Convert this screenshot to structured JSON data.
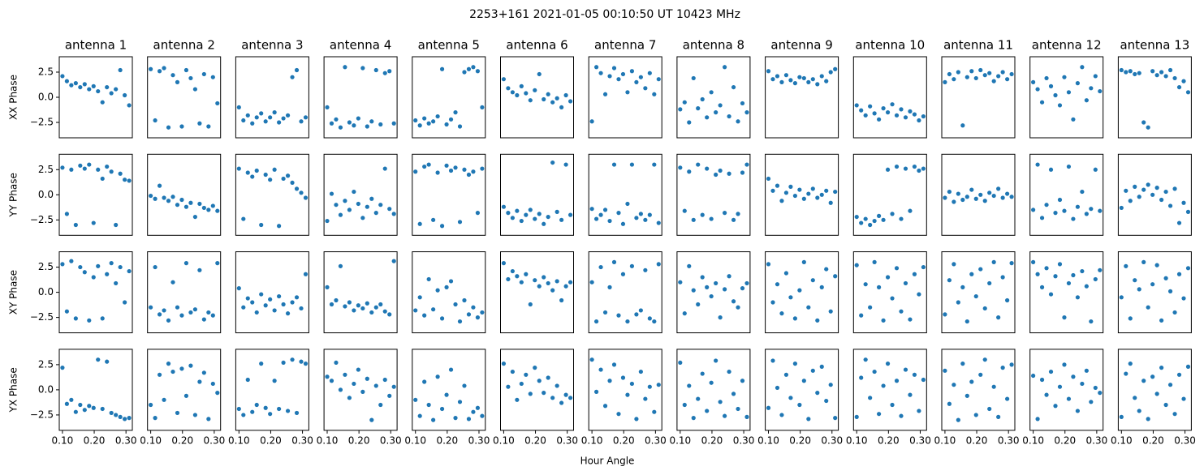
{
  "chart_data": {
    "type": "scatter",
    "title": "2253+161  2021-01-05 00:10:50 UT  10423 MHz",
    "xlabel": "Hour Angle",
    "color": "#1f77b4",
    "columns": [
      "antenna 1",
      "antenna 2",
      "antenna 3",
      "antenna 4",
      "antenna 5",
      "antenna 6",
      "antenna 7",
      "antenna 8",
      "antenna 9",
      "antenna 10",
      "antenna 11",
      "antenna 12",
      "antenna 13"
    ],
    "x": [
      0.1,
      0.114,
      0.128,
      0.142,
      0.156,
      0.17,
      0.184,
      0.198,
      0.212,
      0.226,
      0.24,
      0.254,
      0.268,
      0.282,
      0.296,
      0.31
    ],
    "xlim": [
      0.09,
      0.32
    ],
    "xticks": [
      {
        "value": 0.1,
        "label": "0.10"
      },
      {
        "value": 0.2,
        "label": "0.20"
      },
      {
        "value": 0.3,
        "label": "0.30"
      }
    ],
    "ylim": [
      -4.03,
      4.03
    ],
    "yticks": [
      {
        "value": -2.5,
        "label": "−2.5"
      },
      {
        "value": 0,
        "label": "0.0"
      },
      2.5
    ],
    "rows": [
      {
        "ylabel": "XX Phase",
        "panels": [
          [
            2.1,
            1.6,
            1.2,
            1.4,
            1.0,
            1.3,
            0.8,
            1.1,
            0.6,
            -0.5,
            1.0,
            0.4,
            0.8,
            2.7,
            0.2,
            -0.8
          ],
          [
            2.8,
            -2.3,
            2.6,
            2.9,
            -3.0,
            2.2,
            1.5,
            -2.9,
            2.7,
            1.9,
            0.8,
            -2.6,
            2.3,
            -2.9,
            2.0,
            -0.6
          ],
          [
            -1.0,
            -2.3,
            -1.8,
            -2.6,
            -2.0,
            -1.6,
            -2.4,
            -2.0,
            -1.5,
            -2.5,
            -2.1,
            -1.8,
            2.0,
            2.7,
            -2.4,
            -2.0
          ],
          [
            -1.0,
            -2.6,
            -2.2,
            -3.0,
            3.0,
            -2.5,
            -2.8,
            -2.1,
            2.9,
            -2.9,
            -2.4,
            2.7,
            -2.7,
            2.4,
            2.6,
            -2.6
          ],
          [
            -2.3,
            -2.8,
            -2.1,
            -2.6,
            -2.4,
            -1.9,
            2.8,
            -2.7,
            -2.2,
            -1.5,
            -2.9,
            2.5,
            2.8,
            3.0,
            2.6,
            -1.0
          ],
          [
            1.8,
            0.9,
            0.5,
            0.2,
            1.1,
            0.4,
            -0.3,
            0.7,
            2.3,
            -0.2,
            0.3,
            -0.5,
            -0.1,
            -1.0,
            0.2,
            -0.4
          ],
          [
            -2.4,
            3.0,
            2.4,
            0.3,
            2.1,
            2.9,
            1.8,
            2.3,
            0.5,
            2.6,
            1.5,
            2.0,
            0.9,
            2.4,
            0.3,
            1.8
          ],
          [
            -1.2,
            -0.5,
            -2.5,
            1.9,
            -1.1,
            -0.2,
            -2.0,
            0.5,
            -1.5,
            -0.8,
            3.0,
            -1.9,
            1.0,
            -2.4,
            -0.6,
            -1.5
          ],
          [
            2.6,
            1.8,
            2.1,
            1.5,
            2.2,
            1.7,
            1.4,
            2.0,
            1.9,
            1.5,
            1.8,
            1.3,
            2.1,
            1.6,
            2.5,
            2.8
          ],
          [
            -0.8,
            -1.3,
            -1.8,
            -0.9,
            -1.6,
            -2.2,
            -1.1,
            -1.5,
            -0.7,
            -1.8,
            -1.2,
            -2.0,
            -1.4,
            -1.7,
            -2.3,
            -1.9
          ],
          [
            1.5,
            2.3,
            1.8,
            2.5,
            -2.8,
            2.0,
            2.6,
            1.9,
            2.7,
            2.2,
            2.4,
            1.6,
            2.1,
            2.5,
            1.8,
            2.3
          ],
          [
            1.5,
            0.8,
            -0.5,
            1.9,
            1.1,
            0.2,
            -0.8,
            2.0,
            0.5,
            -2.2,
            1.4,
            3.0,
            -0.3,
            0.9,
            2.1,
            0.6
          ],
          [
            2.7,
            2.5,
            2.6,
            2.3,
            2.4,
            -2.5,
            -3.0,
            2.6,
            2.2,
            2.5,
            2.1,
            2.7,
            1.9,
            1.0,
            1.6,
            0.5
          ]
        ]
      },
      {
        "ylabel": "YY Phase",
        "panels": [
          [
            2.7,
            -1.9,
            2.5,
            -3.0,
            2.9,
            2.6,
            3.0,
            -2.8,
            2.5,
            1.6,
            2.8,
            2.3,
            -3.0,
            2.1,
            1.5,
            1.4
          ],
          [
            -0.1,
            -0.4,
            0.9,
            -0.3,
            -0.6,
            -0.2,
            -1.0,
            -0.5,
            -1.2,
            -0.8,
            -2.2,
            -0.9,
            -1.3,
            -1.5,
            -1.1,
            -1.6
          ],
          [
            2.6,
            -2.4,
            2.2,
            1.8,
            2.4,
            -3.0,
            2.0,
            1.5,
            2.5,
            -3.1,
            1.6,
            1.9,
            1.2,
            0.6,
            0.2,
            -0.3
          ],
          [
            -2.6,
            0.1,
            -1.0,
            -2.0,
            -0.6,
            -1.5,
            0.3,
            -0.9,
            -2.3,
            -1.2,
            -0.4,
            -1.8,
            -1.0,
            2.6,
            -1.4,
            -1.9
          ],
          [
            2.3,
            -2.9,
            2.8,
            3.0,
            -2.5,
            2.2,
            -3.1,
            2.9,
            2.4,
            2.7,
            -2.7,
            2.5,
            2.0,
            2.3,
            -1.8,
            2.6
          ],
          [
            -1.2,
            -1.8,
            -2.3,
            -1.6,
            -2.6,
            -2.0,
            -1.5,
            -2.4,
            -1.9,
            -2.9,
            -2.2,
            3.2,
            -1.7,
            -2.5,
            3.0,
            -2.0
          ],
          [
            -1.4,
            -2.4,
            -2.0,
            -1.5,
            -2.6,
            3.0,
            -1.8,
            -2.9,
            -0.9,
            3.0,
            -2.3,
            -1.9,
            -2.5,
            -2.0,
            3.0,
            -2.8
          ],
          [
            2.7,
            -1.6,
            2.3,
            -2.5,
            3.0,
            -2.0,
            2.6,
            -2.4,
            2.0,
            2.4,
            -1.8,
            2.1,
            -2.5,
            -1.9,
            2.2,
            3.0
          ],
          [
            1.6,
            0.4,
            0.9,
            -0.6,
            0.2,
            0.8,
            -0.1,
            0.5,
            -0.4,
            0.1,
            0.6,
            -0.3,
            0.0,
            0.4,
            -0.8,
            0.3
          ],
          [
            -2.2,
            -2.8,
            -2.4,
            -3.0,
            -2.6,
            -2.1,
            -2.5,
            2.5,
            -1.9,
            2.8,
            -2.4,
            2.6,
            -1.6,
            2.8,
            2.4,
            2.6
          ],
          [
            -0.3,
            0.3,
            -0.7,
            0.1,
            -0.5,
            -0.2,
            0.5,
            -0.4,
            0.0,
            -0.6,
            0.2,
            -0.1,
            0.6,
            -0.3,
            0.1,
            -0.2
          ],
          [
            -1.5,
            3.0,
            -2.3,
            -1.0,
            2.5,
            -1.8,
            -0.5,
            -1.6,
            2.8,
            -2.4,
            -1.2,
            0.3,
            -1.9,
            -1.4,
            2.5,
            -1.6
          ],
          [
            -1.3,
            0.4,
            -0.6,
            0.8,
            -0.2,
            0.5,
            1.0,
            0.0,
            0.7,
            -0.5,
            0.3,
            -1.1,
            0.6,
            -2.8,
            -0.8,
            -1.7
          ]
        ]
      },
      {
        "ylabel": "XY Phase",
        "panels": [
          [
            2.8,
            -1.9,
            3.1,
            -2.6,
            2.5,
            2.0,
            -2.8,
            1.5,
            2.6,
            -2.6,
            1.8,
            2.9,
            0.9,
            2.5,
            -1.0,
            2.1
          ],
          [
            -1.5,
            2.5,
            -2.2,
            -1.8,
            -2.8,
            1.0,
            -1.5,
            -2.3,
            2.9,
            -2.0,
            -1.7,
            2.2,
            -2.7,
            -2.0,
            -2.3,
            2.9
          ],
          [
            0.4,
            -1.5,
            -0.6,
            -1.0,
            -2.0,
            -0.2,
            -1.3,
            -0.7,
            -1.8,
            -0.4,
            -1.2,
            -2.1,
            -1.0,
            -0.5,
            -1.6,
            1.8
          ],
          [
            0.5,
            -1.2,
            -0.8,
            2.6,
            -1.4,
            -1.0,
            -1.8,
            -1.3,
            -1.6,
            -1.1,
            -2.0,
            -1.5,
            -1.2,
            -1.9,
            -2.2,
            3.1
          ],
          [
            -1.8,
            -0.5,
            -2.3,
            1.3,
            -1.7,
            0.2,
            -2.6,
            0.5,
            1.1,
            -1.2,
            -2.9,
            -0.8,
            -2.2,
            -1.5,
            -2.5,
            -2.0
          ],
          [
            2.9,
            1.3,
            2.1,
            1.6,
            1.0,
            1.8,
            -1.2,
            1.2,
            0.6,
            1.5,
            0.9,
            0.2,
            1.1,
            -0.8,
            0.6,
            1.0
          ],
          [
            1.0,
            -2.9,
            2.5,
            -2.0,
            0.5,
            3.0,
            -2.3,
            1.8,
            -2.9,
            2.6,
            -2.2,
            -1.8,
            2.2,
            -2.6,
            -2.9,
            2.8
          ],
          [
            1.0,
            -2.1,
            2.6,
            0.2,
            -1.2,
            1.5,
            0.5,
            -0.4,
            0.9,
            -2.5,
            0.3,
            1.6,
            -0.9,
            -1.5,
            0.4,
            0.9
          ],
          [
            2.8,
            -1.0,
            0.8,
            -2.1,
            1.9,
            -0.5,
            -2.6,
            0.2,
            3.0,
            -1.5,
            1.2,
            -2.8,
            0.5,
            2.3,
            -1.9,
            1.6
          ],
          [
            2.7,
            -2.3,
            0.8,
            -1.5,
            3.0,
            0.5,
            -2.8,
            1.5,
            -0.6,
            2.4,
            -1.9,
            0.9,
            -2.7,
            1.8,
            -0.2,
            2.5
          ],
          [
            -2.2,
            1.2,
            2.8,
            -1.0,
            0.5,
            -2.9,
            1.8,
            -0.4,
            2.3,
            -1.6,
            0.9,
            3.0,
            -2.5,
            1.5,
            -0.8,
            2.9
          ],
          [
            3.0,
            1.8,
            0.5,
            2.4,
            -0.2,
            1.6,
            2.8,
            -2.5,
            0.9,
            1.7,
            -0.5,
            2.1,
            0.6,
            -2.9,
            1.3,
            2.2
          ],
          [
            -0.5,
            2.6,
            -2.6,
            1.2,
            0.3,
            3.0,
            -1.5,
            0.8,
            2.7,
            -2.8,
            1.4,
            0.1,
            -2.0,
            1.8,
            -0.6,
            2.4
          ]
        ]
      },
      {
        "ylabel": "YX Phase",
        "panels": [
          [
            2.2,
            -1.4,
            -1.0,
            -2.2,
            -1.5,
            -2.0,
            -1.6,
            -1.8,
            3.0,
            -1.9,
            2.8,
            -2.3,
            -2.5,
            -2.7,
            -2.9,
            -2.8
          ],
          [
            -1.5,
            -2.8,
            1.5,
            -1.0,
            2.6,
            1.8,
            -2.3,
            2.1,
            -0.6,
            2.4,
            -2.5,
            0.8,
            1.7,
            -2.9,
            0.6,
            -0.3
          ],
          [
            -1.9,
            -2.5,
            1.0,
            -2.2,
            -1.5,
            2.6,
            -1.8,
            -2.4,
            0.9,
            -1.9,
            2.7,
            -2.1,
            3.0,
            -2.3,
            2.8,
            2.6
          ],
          [
            1.3,
            0.9,
            2.7,
            0.0,
            1.5,
            -0.8,
            0.6,
            2.0,
            -0.2,
            1.1,
            -3.0,
            0.4,
            -1.5,
            1.0,
            -0.6,
            0.3
          ],
          [
            -1.0,
            -2.6,
            0.8,
            -1.5,
            -3.0,
            1.3,
            -1.9,
            -0.5,
            2.0,
            -2.8,
            -1.2,
            0.4,
            -2.9,
            -2.2,
            -1.8,
            -2.6
          ],
          [
            2.6,
            0.3,
            1.8,
            -1.0,
            0.6,
            1.5,
            -0.4,
            2.2,
            0.9,
            -0.3,
            1.2,
            -0.8,
            0.4,
            -1.3,
            -0.5,
            -0.8
          ],
          [
            3.0,
            -0.2,
            2.0,
            -1.6,
            0.9,
            2.5,
            -2.4,
            1.2,
            -0.5,
            0.6,
            -2.9,
            1.8,
            -0.9,
            0.3,
            -2.2,
            0.5
          ],
          [
            2.7,
            -1.5,
            0.4,
            -2.8,
            -0.9,
            1.6,
            -2.1,
            0.7,
            2.9,
            -1.2,
            -2.6,
            1.8,
            -0.4,
            -1.9,
            0.9,
            -2.7
          ],
          [
            -1.8,
            2.9,
            0.2,
            -2.5,
            1.5,
            -0.8,
            2.6,
            -1.5,
            0.9,
            -2.9,
            1.9,
            -0.3,
            2.3,
            -1.1,
            0.5,
            -2.8
          ],
          [
            -2.7,
            1.2,
            3.0,
            -0.8,
            1.8,
            -2.4,
            0.4,
            2.6,
            -1.5,
            0.9,
            -2.6,
            2.0,
            -0.5,
            1.5,
            -2.1,
            1.0
          ],
          [
            1.9,
            -1.4,
            0.5,
            -3.0,
            2.6,
            -0.6,
            0.8,
            -2.5,
            1.5,
            3.0,
            -1.9,
            0.3,
            -2.7,
            2.2,
            -0.9,
            2.5
          ],
          [
            1.4,
            -2.9,
            1.0,
            -0.5,
            1.8,
            -1.6,
            0.3,
            2.5,
            -0.9,
            1.3,
            -2.1,
            0.6,
            1.9,
            -1.2,
            0.2,
            -0.3
          ],
          [
            -2.7,
            1.6,
            2.6,
            -0.8,
            -2.1,
            0.9,
            -2.9,
            1.3,
            -0.4,
            2.2,
            -1.5,
            0.5,
            -2.4,
            1.5,
            -0.9,
            2.3
          ]
        ]
      }
    ]
  }
}
